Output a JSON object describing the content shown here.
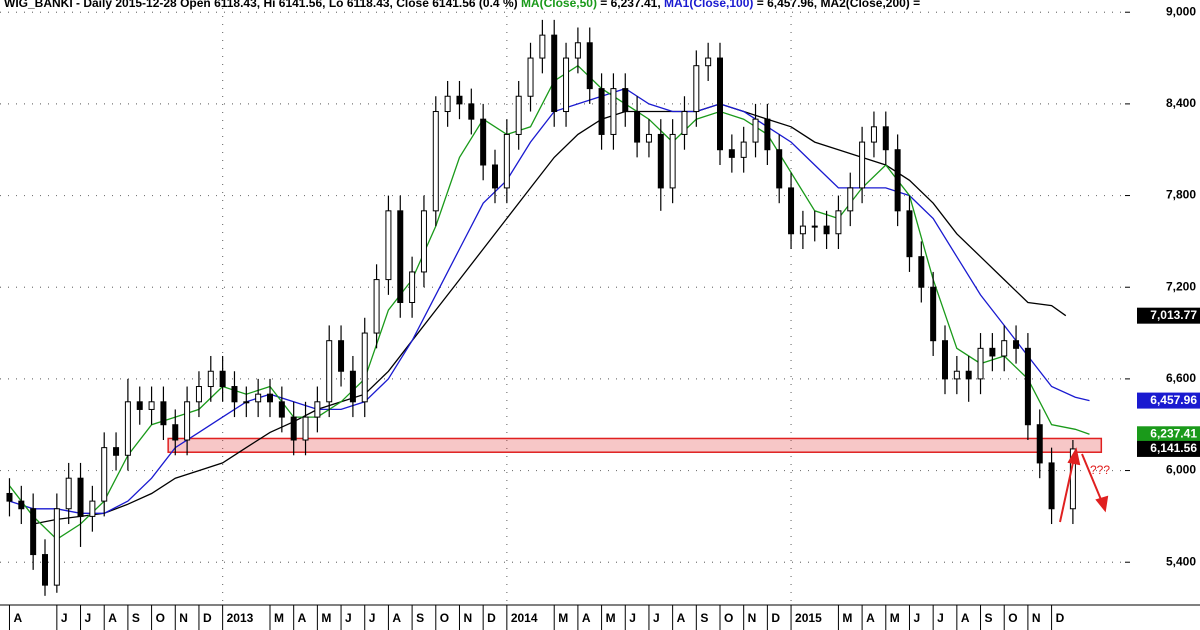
{
  "chart_data": {
    "type": "candlestick",
    "title_segments": [
      {
        "text": "WIG_BANKI - Daily 2015-12-28 Open 6118.43, Hi 6141.56, Lo 6118.43, Close 6141.56 (0.4 %) ",
        "color": "#000000"
      },
      {
        "text": "MA(Close,50)",
        "color": "#1a9a1a"
      },
      {
        "text": " = 6,237.41, ",
        "color": "#000000"
      },
      {
        "text": "MA1(Close,100)",
        "color": "#1a1ad0"
      },
      {
        "text": " = 6,457.96, MA2(Close,200) = ",
        "color": "#000000"
      }
    ],
    "x": [
      0,
      0.5,
      1,
      1.5,
      2,
      2.5,
      3,
      3.5,
      4,
      4.5,
      5,
      5.5,
      6,
      6.5,
      7,
      7.5,
      8,
      8.5,
      9,
      9.5,
      10,
      10.5,
      11,
      11.5,
      12,
      12.5,
      13,
      13.5,
      14,
      14.5,
      15,
      15.5,
      16,
      16.5,
      17,
      17.5,
      18,
      18.5,
      19,
      19.5,
      20,
      20.5,
      21,
      21.5,
      22,
      22.5,
      23,
      23.5,
      24,
      24.5,
      25,
      25.5,
      26,
      26.5,
      27,
      27.5,
      28,
      28.5,
      29,
      29.5,
      30,
      30.5,
      31,
      31.5,
      32,
      32.5,
      33,
      33.5,
      34,
      34.5,
      35,
      35.5,
      36,
      36.5,
      37,
      37.5,
      38,
      38.5,
      39,
      39.5,
      40,
      40.5,
      41,
      41.5,
      42,
      42.5,
      43,
      43.5,
      44,
      44.9
    ],
    "open": [
      5850,
      5800,
      5750,
      5450,
      5250,
      5750,
      5950,
      5700,
      5800,
      6150,
      6100,
      6450,
      6400,
      6450,
      6300,
      6200,
      6450,
      6550,
      6650,
      6550,
      6450,
      6450,
      6500,
      6450,
      6350,
      6200,
      6350,
      6450,
      6850,
      6650,
      6450,
      6900,
      7250,
      7700,
      7100,
      7300,
      7700,
      8350,
      8450,
      8400,
      8300,
      8000,
      7850,
      8200,
      8450,
      8700,
      8850,
      8350,
      8700,
      8800,
      8500,
      8200,
      8500,
      8350,
      8150,
      8200,
      7850,
      8200,
      8350,
      8650,
      8700,
      8100,
      8050,
      8150,
      8300,
      8100,
      7850,
      7550,
      7600,
      7600,
      7550,
      7700,
      7850,
      8150,
      8250,
      8100,
      7700,
      7400,
      7200,
      6850,
      6600,
      6650,
      6600,
      6800,
      6750,
      6850,
      6800,
      6300,
      6050,
      5750
    ],
    "high": [
      5950,
      5900,
      5850,
      5550,
      5850,
      6050,
      6050,
      5900,
      6250,
      6250,
      6600,
      6550,
      6550,
      6550,
      6400,
      6550,
      6650,
      6750,
      6750,
      6650,
      6550,
      6600,
      6600,
      6550,
      6450,
      6450,
      6550,
      6950,
      6950,
      6750,
      7000,
      7350,
      7800,
      7800,
      7400,
      7800,
      8450,
      8550,
      8550,
      8500,
      8400,
      8100,
      8300,
      8550,
      8800,
      8950,
      8950,
      8800,
      8900,
      8900,
      8600,
      8600,
      8600,
      8450,
      8300,
      8300,
      8300,
      8450,
      8750,
      8800,
      8800,
      8200,
      8250,
      8400,
      8400,
      8200,
      7950,
      7700,
      7700,
      7700,
      7800,
      7950,
      8250,
      8350,
      8350,
      8200,
      7800,
      7500,
      7300,
      6950,
      6750,
      6750,
      6900,
      6900,
      6950,
      6950,
      6900,
      6400,
      6150,
      6200
    ],
    "low": [
      5700,
      5650,
      5350,
      5180,
      5200,
      5650,
      5500,
      5600,
      5700,
      6000,
      6000,
      6300,
      6300,
      6200,
      6100,
      6100,
      6350,
      6450,
      6450,
      6350,
      6350,
      6350,
      6350,
      6250,
      6100,
      6100,
      6250,
      6350,
      6550,
      6350,
      6350,
      6800,
      7150,
      7000,
      7000,
      7200,
      7600,
      8250,
      8300,
      8200,
      7900,
      7750,
      7750,
      8100,
      8350,
      8600,
      8250,
      8250,
      8600,
      8400,
      8100,
      8100,
      8250,
      8050,
      8050,
      7700,
      7750,
      8100,
      8250,
      8550,
      8000,
      7950,
      7950,
      8050,
      8000,
      7750,
      7450,
      7450,
      7500,
      7450,
      7450,
      7600,
      7750,
      8050,
      8000,
      7600,
      7300,
      7100,
      6750,
      6500,
      6500,
      6450,
      6500,
      6650,
      6650,
      6700,
      6200,
      5950,
      5650,
      5650
    ],
    "close": [
      5800,
      5750,
      5450,
      5250,
      5750,
      5950,
      5700,
      5800,
      6150,
      6100,
      6450,
      6400,
      6450,
      6300,
      6200,
      6450,
      6550,
      6650,
      6550,
      6450,
      6450,
      6500,
      6450,
      6350,
      6200,
      6350,
      6450,
      6850,
      6650,
      6450,
      6900,
      7250,
      7700,
      7100,
      7300,
      7700,
      8350,
      8450,
      8400,
      8300,
      8000,
      7850,
      8200,
      8450,
      8700,
      8850,
      8350,
      8700,
      8800,
      8500,
      8200,
      8500,
      8350,
      8150,
      8200,
      7850,
      8200,
      8350,
      8650,
      8700,
      8100,
      8050,
      8150,
      8300,
      8100,
      7850,
      7550,
      7600,
      7600,
      7550,
      7700,
      7850,
      8150,
      8250,
      8100,
      7700,
      7400,
      7200,
      6850,
      6600,
      6650,
      6600,
      6800,
      6750,
      6850,
      6800,
      6300,
      6050,
      5750,
      6141.56
    ],
    "series": [
      {
        "name": "MA2(Close,200)",
        "color": "#000000",
        "x": [
          1,
          2,
          3,
          4,
          5,
          6,
          7,
          8,
          9,
          10,
          11,
          12,
          13,
          14,
          15,
          16,
          17,
          18,
          19,
          20,
          21,
          22,
          23,
          24,
          25,
          26,
          27,
          28,
          29,
          30,
          31,
          32,
          33,
          34,
          35,
          36,
          37,
          38,
          39,
          40,
          41,
          42,
          43,
          44,
          44.6
        ],
        "values": [
          5650,
          5680,
          5700,
          5720,
          5780,
          5850,
          5950,
          6000,
          6050,
          6150,
          6250,
          6320,
          6400,
          6450,
          6500,
          6650,
          6850,
          7050,
          7250,
          7450,
          7650,
          7850,
          8050,
          8200,
          8300,
          8350,
          8350,
          8350,
          8350,
          8400,
          8350,
          8300,
          8250,
          8150,
          8100,
          8050,
          8000,
          7900,
          7750,
          7550,
          7400,
          7250,
          7100,
          7080,
          7013.77
        ]
      },
      {
        "name": "MA1(Close,100)",
        "color": "#1a1ad0",
        "x": [
          0,
          1,
          2,
          3,
          4,
          5,
          6,
          7,
          8,
          9,
          10,
          11,
          12,
          13,
          14,
          15,
          16,
          17,
          18,
          19,
          20,
          21,
          22,
          23,
          24,
          25,
          26,
          27,
          28,
          29,
          30,
          31,
          32,
          33,
          34,
          35,
          36,
          37,
          38,
          39,
          40,
          41,
          42,
          43,
          44,
          45,
          45.6
        ],
        "values": [
          5800,
          5750,
          5750,
          5720,
          5720,
          5800,
          5950,
          6150,
          6250,
          6350,
          6450,
          6500,
          6450,
          6400,
          6400,
          6450,
          6600,
          6850,
          7150,
          7450,
          7750,
          7900,
          8150,
          8350,
          8400,
          8450,
          8500,
          8400,
          8350,
          8350,
          8400,
          8350,
          8250,
          8150,
          8000,
          7850,
          7850,
          7850,
          7800,
          7650,
          7400,
          7150,
          6950,
          6750,
          6550,
          6480,
          6457.96
        ]
      },
      {
        "name": "MA(Close,50)",
        "color": "#1a9a1a",
        "x": [
          0,
          1,
          2,
          3,
          4,
          5,
          6,
          7,
          8,
          9,
          10,
          11,
          12,
          13,
          14,
          15,
          16,
          17,
          18,
          19,
          20,
          21,
          22,
          23,
          24,
          25,
          26,
          27,
          28,
          29,
          30,
          31,
          32,
          33,
          34,
          35,
          36,
          37,
          38,
          39,
          40,
          41,
          42,
          43,
          44,
          45,
          45.6
        ],
        "values": [
          5900,
          5700,
          5550,
          5650,
          5800,
          6100,
          6300,
          6350,
          6400,
          6550,
          6500,
          6550,
          6350,
          6350,
          6450,
          6600,
          7050,
          7250,
          7600,
          8050,
          8300,
          8200,
          8250,
          8550,
          8650,
          8500,
          8400,
          8300,
          8150,
          8300,
          8350,
          8300,
          8200,
          7950,
          7700,
          7650,
          7850,
          8000,
          7800,
          7250,
          6800,
          6700,
          6750,
          6600,
          6300,
          6270,
          6237.41
        ]
      }
    ],
    "price_labels": [
      {
        "value": 7013.77,
        "label": "7,013.77",
        "color": "#000000"
      },
      {
        "value": 6457.96,
        "label": "6,457.96",
        "color": "#1a1ad0"
      },
      {
        "value": 6237.41,
        "label": "6,237.41",
        "color": "#1a9a1a"
      },
      {
        "value": 6141.56,
        "label": "6,141.56",
        "color": "#000000"
      }
    ],
    "zone": {
      "ylim": [
        6120,
        6210
      ],
      "xlim": [
        6.7,
        46.1
      ],
      "color": "#e02020"
    },
    "annotation": "???",
    "xlim": [
      -0.4,
      47.1
    ],
    "ylim": [
      5120,
      9080
    ],
    "yticks": [
      {
        "value": 5400,
        "label": "5,400"
      },
      {
        "value": 6000,
        "label": "6,000"
      },
      {
        "value": 6600,
        "label": "6,600"
      },
      {
        "value": 7200,
        "label": "7,200"
      },
      {
        "value": 7800,
        "label": "7,800"
      },
      {
        "value": 8400,
        "label": "8,400"
      },
      {
        "value": 9000,
        "label": "9,000"
      }
    ],
    "xticks": [
      {
        "value": 0,
        "label": "A"
      },
      {
        "value": 2,
        "label": "J"
      },
      {
        "value": 3,
        "label": "J"
      },
      {
        "value": 4,
        "label": "A"
      },
      {
        "value": 5,
        "label": "S"
      },
      {
        "value": 6,
        "label": "O"
      },
      {
        "value": 7,
        "label": "N"
      },
      {
        "value": 8,
        "label": "D"
      },
      {
        "value": 9,
        "label": "2013"
      },
      {
        "value": 11,
        "label": "M"
      },
      {
        "value": 12,
        "label": "A"
      },
      {
        "value": 13,
        "label": "M"
      },
      {
        "value": 14,
        "label": "J"
      },
      {
        "value": 15,
        "label": "J"
      },
      {
        "value": 16,
        "label": "A"
      },
      {
        "value": 17,
        "label": "S"
      },
      {
        "value": 18,
        "label": "O"
      },
      {
        "value": 19,
        "label": "N"
      },
      {
        "value": 20,
        "label": "D"
      },
      {
        "value": 21,
        "label": "2014"
      },
      {
        "value": 23,
        "label": "M"
      },
      {
        "value": 24,
        "label": "A"
      },
      {
        "value": 25,
        "label": "M"
      },
      {
        "value": 26,
        "label": "J"
      },
      {
        "value": 27,
        "label": "J"
      },
      {
        "value": 28,
        "label": "A"
      },
      {
        "value": 29,
        "label": "S"
      },
      {
        "value": 30,
        "label": "O"
      },
      {
        "value": 31,
        "label": "N"
      },
      {
        "value": 32,
        "label": "D"
      },
      {
        "value": 33,
        "label": "2015"
      },
      {
        "value": 35,
        "label": "M"
      },
      {
        "value": 36,
        "label": "A"
      },
      {
        "value": 37,
        "label": "M"
      },
      {
        "value": 38,
        "label": "J"
      },
      {
        "value": 39,
        "label": "J"
      },
      {
        "value": 40,
        "label": "A"
      },
      {
        "value": 41,
        "label": "S"
      },
      {
        "value": 42,
        "label": "O"
      },
      {
        "value": 43,
        "label": "N"
      },
      {
        "value": 44,
        "label": "D"
      }
    ],
    "grid": true
  }
}
